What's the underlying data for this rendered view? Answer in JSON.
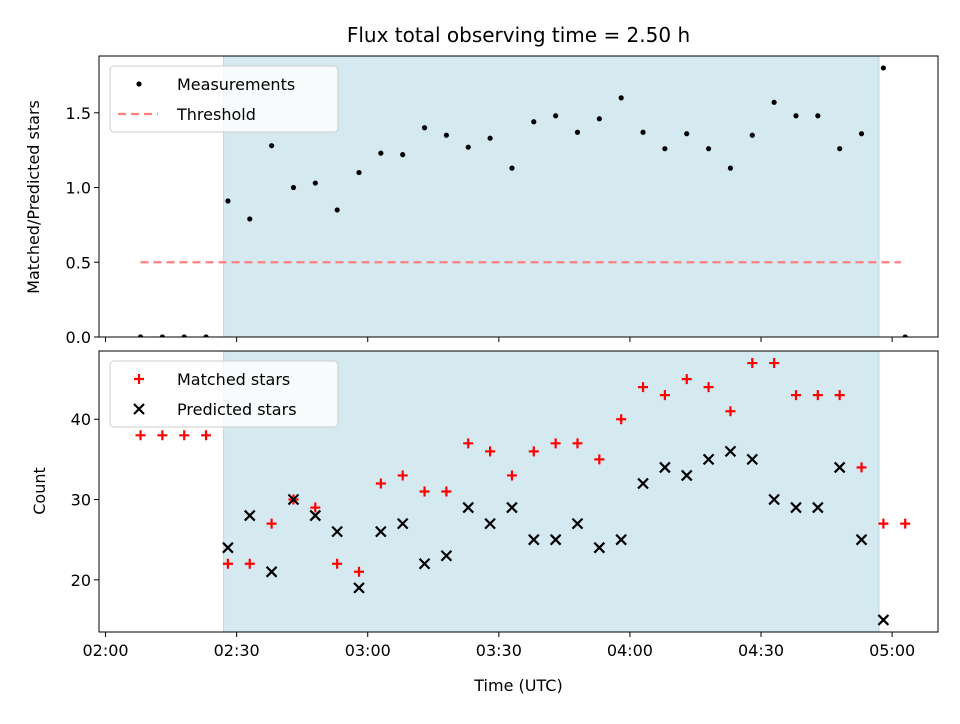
{
  "chart_data": [
    {
      "type": "scatter",
      "title": "Flux total observing time = 2.50 h",
      "xlabel": "",
      "ylabel": "Matched/Predicted stars",
      "xlim_minutes_since_02_00": [
        -1.5,
        190.5
      ],
      "ylim": [
        0,
        1.88
      ],
      "yticks": [
        0.0,
        0.5,
        1.0,
        1.5
      ],
      "ytick_labels": [
        "0.0",
        "0.5",
        "1.0",
        "1.5"
      ],
      "xtick_labels": [],
      "shaded_span": {
        "start": "02:27",
        "end": "04:57",
        "color": "#d4eaf0"
      },
      "grid": false,
      "legend": {
        "placement": "top-left",
        "entries": [
          {
            "label": "Measurements",
            "marker": "dot",
            "color": "#000000"
          },
          {
            "label": "Threshold",
            "marker": "dashed-line",
            "color": "#ff7f7f"
          }
        ]
      },
      "threshold": {
        "name": "Threshold",
        "value": 0.5,
        "x_start": "02:08",
        "x_end": "05:02",
        "color": "#ff7f7f"
      },
      "series": [
        {
          "name": "Measurements",
          "color": "#000000",
          "x": [
            "02:08",
            "02:13",
            "02:18",
            "02:23",
            "02:28",
            "02:33",
            "02:38",
            "02:43",
            "02:48",
            "02:53",
            "02:58",
            "03:03",
            "03:08",
            "03:13",
            "03:18",
            "03:23",
            "03:28",
            "03:33",
            "03:38",
            "03:43",
            "03:48",
            "03:53",
            "03:58",
            "04:03",
            "04:08",
            "04:13",
            "04:18",
            "04:23",
            "04:28",
            "04:33",
            "04:38",
            "04:43",
            "04:48",
            "04:53",
            "04:58",
            "05:03"
          ],
          "y": [
            0.0,
            0.0,
            0.0,
            0.0,
            0.91,
            0.79,
            1.28,
            1.0,
            1.03,
            0.85,
            1.1,
            1.23,
            1.22,
            1.4,
            1.35,
            1.27,
            1.33,
            1.13,
            1.44,
            1.48,
            1.37,
            1.46,
            1.6,
            1.37,
            1.26,
            1.36,
            1.26,
            1.13,
            1.35,
            1.57,
            1.48,
            1.48,
            1.26,
            1.36,
            1.8,
            0.0
          ]
        }
      ]
    },
    {
      "type": "scatter",
      "title": "",
      "xlabel": "Time (UTC)",
      "ylabel": "Count",
      "xlim_minutes_since_02_00": [
        -1.5,
        190.5
      ],
      "ylim": [
        13.5,
        48.5
      ],
      "yticks": [
        20,
        30,
        40
      ],
      "ytick_labels": [
        "20",
        "30",
        "40"
      ],
      "xticks_minutes_since_02_00": [
        0,
        30,
        60,
        90,
        120,
        150,
        180
      ],
      "xtick_labels": [
        "02:00",
        "02:30",
        "03:00",
        "03:30",
        "04:00",
        "04:30",
        "05:00"
      ],
      "shaded_span": {
        "start": "02:27",
        "end": "04:57",
        "color": "#d4eaf0"
      },
      "grid": false,
      "legend": {
        "placement": "top-left",
        "entries": [
          {
            "label": "Matched stars",
            "marker": "plus",
            "color": "#ff0000"
          },
          {
            "label": "Predicted stars",
            "marker": "x",
            "color": "#000000"
          }
        ]
      },
      "series": [
        {
          "name": "Matched stars",
          "marker": "plus",
          "color": "#ff0000",
          "x": [
            "02:08",
            "02:13",
            "02:18",
            "02:23",
            "02:28",
            "02:33",
            "02:38",
            "02:43",
            "02:48",
            "02:53",
            "02:58",
            "03:03",
            "03:08",
            "03:13",
            "03:18",
            "03:23",
            "03:28",
            "03:33",
            "03:38",
            "03:43",
            "03:48",
            "03:53",
            "03:58",
            "04:03",
            "04:08",
            "04:13",
            "04:18",
            "04:23",
            "04:28",
            "04:33",
            "04:38",
            "04:43",
            "04:48",
            "04:53",
            "04:58",
            "05:03"
          ],
          "y": [
            38,
            38,
            38,
            38,
            22,
            22,
            27,
            30,
            29,
            22,
            21,
            32,
            33,
            31,
            31,
            37,
            36,
            33,
            36,
            37,
            37,
            35,
            40,
            44,
            43,
            45,
            44,
            41,
            47,
            47,
            43,
            43,
            43,
            34,
            27,
            27
          ]
        },
        {
          "name": "Predicted stars",
          "marker": "x",
          "color": "#000000",
          "x": [
            "02:28",
            "02:33",
            "02:38",
            "02:43",
            "02:48",
            "02:53",
            "02:58",
            "03:03",
            "03:08",
            "03:13",
            "03:18",
            "03:23",
            "03:28",
            "03:33",
            "03:38",
            "03:43",
            "03:48",
            "03:53",
            "03:58",
            "04:03",
            "04:08",
            "04:13",
            "04:18",
            "04:23",
            "04:28",
            "04:33",
            "04:38",
            "04:43",
            "04:48",
            "04:53",
            "04:58"
          ],
          "y": [
            24,
            28,
            21,
            30,
            28,
            26,
            19,
            26,
            27,
            22,
            23,
            29,
            27,
            29,
            25,
            25,
            27,
            24,
            25,
            32,
            34,
            33,
            35,
            36,
            35,
            30,
            29,
            29,
            34,
            25,
            15
          ]
        }
      ]
    }
  ]
}
